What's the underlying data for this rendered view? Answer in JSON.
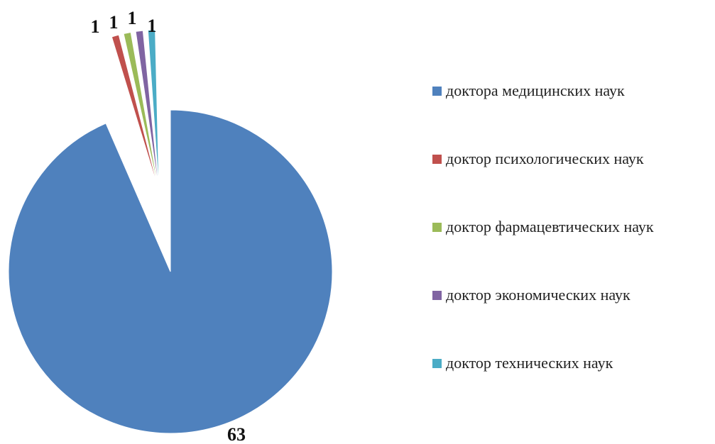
{
  "chart_data": {
    "type": "pie",
    "categories": [
      "доктора медицинских наук",
      "доктор психологических наук",
      "доктор фармацевтических наук",
      "доктор экономических наук",
      "доктор технических наук"
    ],
    "values": [
      63,
      1,
      1,
      1,
      1
    ],
    "data_labels": [
      "63",
      "1",
      "1",
      "1",
      "1"
    ],
    "colors": [
      "#4f81bd",
      "#c0504d",
      "#9bbb59",
      "#8064a2",
      "#4bacc6"
    ],
    "exploded": true,
    "legend_position": "right",
    "title": ""
  }
}
